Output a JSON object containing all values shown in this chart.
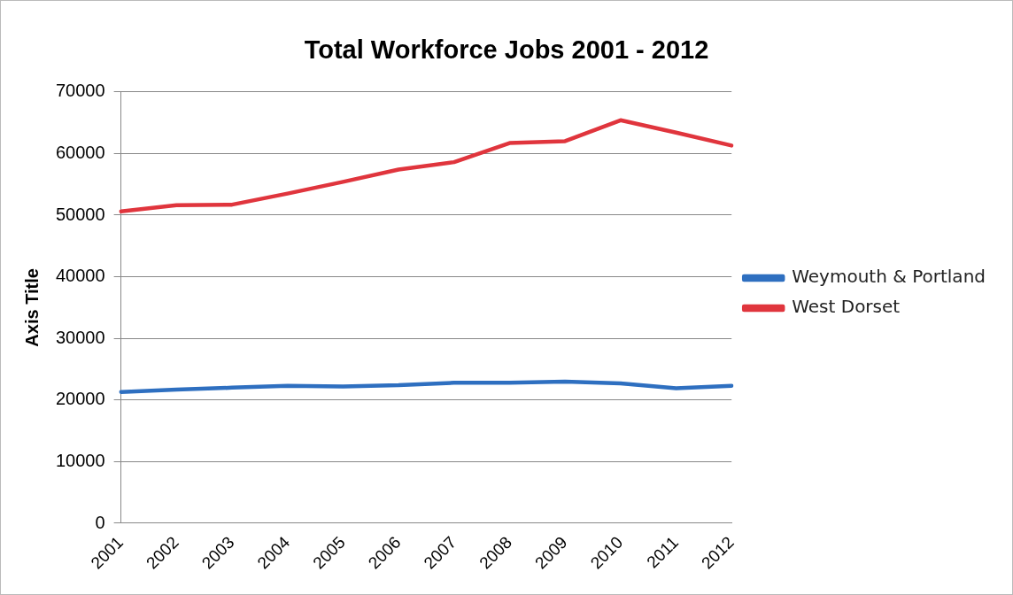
{
  "chart_data": {
    "type": "line",
    "title": "Total Workforce Jobs 2001 - 2012",
    "ylabel": "Axis Title",
    "categories": [
      "2001",
      "2002",
      "2003",
      "2004",
      "2005",
      "2006",
      "2007",
      "2008",
      "2009",
      "2010",
      "2011",
      "2012"
    ],
    "series": [
      {
        "name": "Weymouth & Portland",
        "color": "#2e6fc0",
        "values": [
          21300,
          21700,
          22000,
          22300,
          22200,
          22400,
          22800,
          22800,
          23000,
          22700,
          21900,
          22300
        ]
      },
      {
        "name": "West Dorset",
        "color": "#e0353d",
        "values": [
          50600,
          51600,
          51700,
          53500,
          55400,
          57400,
          58600,
          61700,
          62000,
          65400,
          63400,
          61300
        ]
      }
    ],
    "ylim": [
      0,
      70000
    ],
    "yticks": [
      0,
      10000,
      20000,
      30000,
      40000,
      50000,
      60000,
      70000
    ],
    "grid": "y",
    "legend": "right",
    "marker": "none",
    "line_style": "solid"
  }
}
